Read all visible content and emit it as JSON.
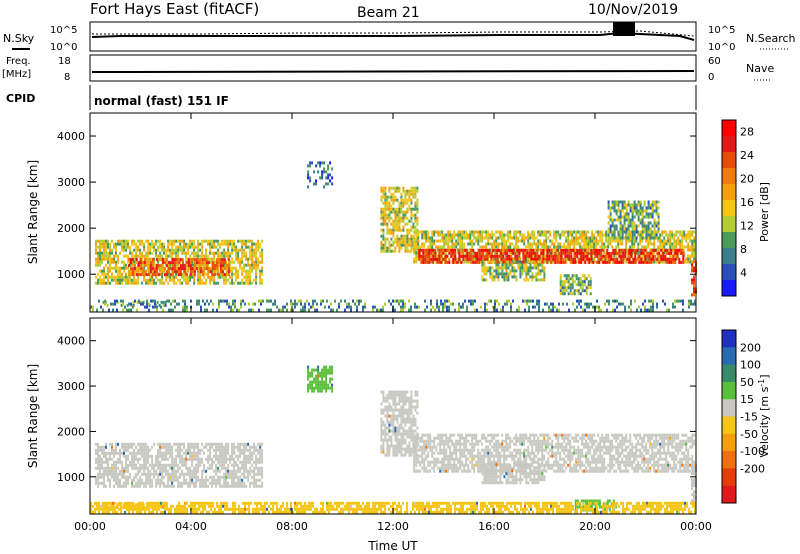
{
  "header": {
    "title": "Fort Hays East (fitACF)",
    "beam": "Beam 21",
    "date": "10/Nov/2019"
  },
  "top_panels": {
    "nsky_label": "N.Sky",
    "nsky_ticks": [
      "10^5",
      "10^0"
    ],
    "nsearch_label": "N.Search",
    "nsearch_ticks": [
      "10^5",
      "10^0"
    ],
    "freq_label": "Freq.",
    "freq_unit": "[MHz]",
    "freq_ticks": [
      "18",
      "8"
    ],
    "nave_label": "Nave",
    "nave_ticks": [
      "60",
      "0"
    ],
    "cpid_label": "CPID",
    "cpid_value": "normal (fast) 151 IF"
  },
  "chart_data": [
    {
      "type": "heatmap",
      "name": "power",
      "ylabel": "Slant Range [km]",
      "xlabel": "",
      "x_ticks": [
        "00:00",
        "04:00",
        "08:00",
        "12:00",
        "16:00",
        "20:00",
        "00:00"
      ],
      "y_ticks": [
        "1000",
        "2000",
        "3000",
        "4000"
      ],
      "xlim_hours": [
        0,
        24
      ],
      "ylim_km": [
        180,
        4500
      ],
      "colorbar": {
        "label": "Power [dB]",
        "ticks": [
          "4",
          "8",
          "12",
          "16",
          "20",
          "24",
          "28"
        ],
        "range": [
          0,
          30
        ],
        "colors": [
          "#1a1aff",
          "#2b4fb8",
          "#3b7e8a",
          "#4a9b5a",
          "#b3cc33",
          "#f5c518",
          "#f5a00a",
          "#f07a0a",
          "#e64d0a",
          "#e31a1a",
          "#ff0000"
        ]
      },
      "regions": [
        {
          "t0": 0.2,
          "t1": 6.8,
          "r0": 800,
          "r1": 1750,
          "v": 14
        },
        {
          "t0": 1.5,
          "t1": 5.5,
          "r0": 1000,
          "r1": 1350,
          "v": 22
        },
        {
          "t0": 0.5,
          "t1": 3.0,
          "r0": 300,
          "r1": 420,
          "v": 8
        },
        {
          "t0": 8.6,
          "t1": 9.6,
          "r0": 2900,
          "r1": 3450,
          "v": 6
        },
        {
          "t0": 11.5,
          "t1": 13.0,
          "r0": 1500,
          "r1": 2900,
          "v": 14
        },
        {
          "t0": 12.8,
          "t1": 23.9,
          "r0": 1250,
          "r1": 1950,
          "v": 14
        },
        {
          "t0": 13.0,
          "t1": 23.5,
          "r0": 1250,
          "r1": 1550,
          "v": 26
        },
        {
          "t0": 15.5,
          "t1": 18.0,
          "r0": 900,
          "r1": 1300,
          "v": 12
        },
        {
          "t0": 18.6,
          "t1": 19.8,
          "r0": 600,
          "r1": 1000,
          "v": 10
        },
        {
          "t0": 20.5,
          "t1": 22.5,
          "r0": 1800,
          "r1": 2600,
          "v": 10
        },
        {
          "t0": 23.8,
          "t1": 24.0,
          "r0": 500,
          "r1": 1300,
          "v": 24
        },
        {
          "t0": 0.0,
          "t1": 24.0,
          "r0": 200,
          "r1": 450,
          "v": 8
        }
      ]
    },
    {
      "type": "heatmap",
      "name": "velocity",
      "ylabel": "Slant Range [km]",
      "xlabel": "Time UT",
      "x_ticks": [
        "00:00",
        "04:00",
        "08:00",
        "12:00",
        "16:00",
        "20:00",
        "00:00"
      ],
      "y_ticks": [
        "1000",
        "2000",
        "3000",
        "4000"
      ],
      "xlim_hours": [
        0,
        24
      ],
      "ylim_km": [
        180,
        4500
      ],
      "colorbar": {
        "label": "Velocity [m s^-1]",
        "ticks": [
          "200",
          "100",
          "50",
          "15",
          "-15",
          "-50",
          "-100",
          "-200"
        ],
        "colors": [
          "#2030c0",
          "#2a6ab0",
          "#3a8a6a",
          "#5abf3a",
          "#c8c8c0",
          "#f5c518",
          "#f5a00a",
          "#f0700a",
          "#e63c0a",
          "#e01a1a"
        ]
      },
      "regions": [
        {
          "t0": 0.2,
          "t1": 6.8,
          "r0": 800,
          "r1": 1750,
          "v": 0
        },
        {
          "t0": 0.5,
          "t1": 3.0,
          "r0": 300,
          "r1": 420,
          "v": -40
        },
        {
          "t0": 8.6,
          "t1": 9.6,
          "r0": 2900,
          "r1": 3450,
          "v": 30
        },
        {
          "t0": 11.5,
          "t1": 13.0,
          "r0": 1500,
          "r1": 2900,
          "v": 0
        },
        {
          "t0": 12.8,
          "t1": 23.9,
          "r0": 1150,
          "r1": 1950,
          "v": 0
        },
        {
          "t0": 15.5,
          "t1": 18.0,
          "r0": 900,
          "r1": 1300,
          "v": 0
        },
        {
          "t0": 19.2,
          "t1": 20.8,
          "r0": 300,
          "r1": 500,
          "v": 40
        },
        {
          "t0": 23.8,
          "t1": 24.0,
          "r0": 500,
          "r1": 1300,
          "v": 0
        },
        {
          "t0": 0.0,
          "t1": 24.0,
          "r0": 200,
          "r1": 450,
          "v": -40
        }
      ]
    }
  ]
}
